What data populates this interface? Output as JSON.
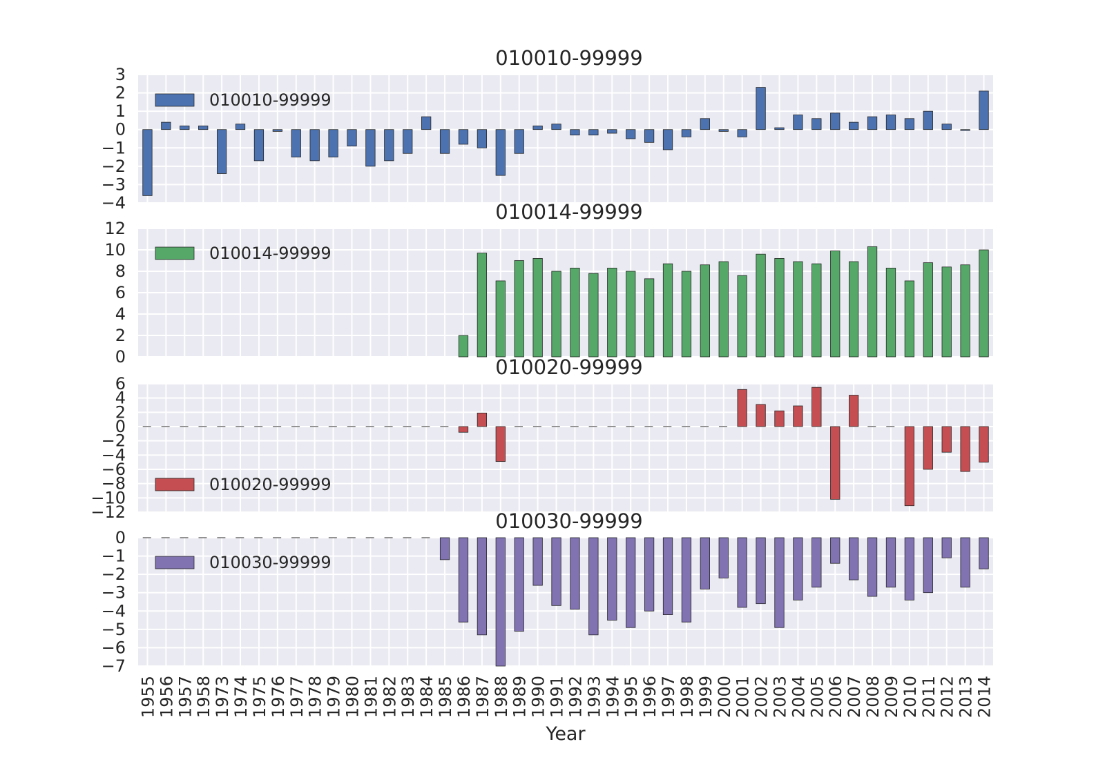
{
  "chart_data": {
    "type": "bar",
    "xlabel": "Year",
    "categories": [
      "1955",
      "1956",
      "1957",
      "1958",
      "1973",
      "1974",
      "1975",
      "1976",
      "1977",
      "1978",
      "1979",
      "1980",
      "1981",
      "1982",
      "1983",
      "1984",
      "1985",
      "1986",
      "1987",
      "1988",
      "1989",
      "1990",
      "1991",
      "1992",
      "1993",
      "1994",
      "1995",
      "1996",
      "1997",
      "1998",
      "1999",
      "2000",
      "2001",
      "2002",
      "2003",
      "2004",
      "2005",
      "2006",
      "2007",
      "2008",
      "2009",
      "2010",
      "2011",
      "2012",
      "2013",
      "2014"
    ],
    "grid": true,
    "legend_position": "upper-left (third panel: lower-left)",
    "panels": [
      {
        "title": "010010-99999",
        "legend": "010010-99999",
        "color": "#4C72B0",
        "ylim": [
          -4,
          3
        ],
        "yticks": [
          -4,
          -3,
          -2,
          -1,
          0,
          1,
          2,
          3
        ],
        "values": [
          -3.6,
          0.4,
          0.2,
          0.2,
          -2.4,
          0.3,
          -1.7,
          -0.1,
          -1.5,
          -1.7,
          -1.5,
          -0.9,
          -2.0,
          -1.7,
          -1.3,
          0.7,
          -1.3,
          -0.8,
          -1.0,
          -2.5,
          -1.3,
          0.2,
          0.3,
          -0.3,
          -0.3,
          -0.2,
          -0.5,
          -0.7,
          -1.1,
          -0.4,
          0.6,
          -0.1,
          -0.4,
          2.3,
          0.1,
          0.8,
          0.6,
          0.9,
          0.4,
          0.7,
          0.8,
          0.6,
          1.0,
          0.3,
          -0.05,
          2.1
        ]
      },
      {
        "title": "010014-99999",
        "legend": "010014-99999",
        "color": "#55A868",
        "ylim": [
          0,
          12
        ],
        "yticks": [
          0,
          2,
          4,
          6,
          8,
          10,
          12
        ],
        "values": [
          null,
          null,
          null,
          null,
          null,
          null,
          null,
          null,
          null,
          null,
          null,
          null,
          null,
          null,
          null,
          null,
          null,
          2.0,
          9.7,
          7.1,
          9.0,
          9.2,
          8.0,
          8.3,
          7.8,
          8.3,
          8.0,
          7.3,
          8.7,
          8.0,
          8.6,
          8.9,
          7.6,
          9.6,
          9.2,
          8.9,
          8.7,
          9.9,
          8.9,
          10.3,
          8.3,
          7.1,
          8.8,
          8.4,
          8.6,
          10.0
        ]
      },
      {
        "title": "010020-99999",
        "legend": "010020-99999",
        "color": "#C44E52",
        "ylim": [
          -12,
          6
        ],
        "yticks": [
          -12,
          -10,
          -8,
          -6,
          -4,
          -2,
          0,
          2,
          4,
          6
        ],
        "values": [
          0,
          0,
          0,
          0,
          0,
          0,
          0,
          0,
          0,
          0,
          0,
          0,
          0,
          0,
          0,
          0,
          0,
          -0.8,
          1.9,
          -4.9,
          0,
          0,
          0,
          0,
          0,
          0,
          0,
          0,
          0,
          0,
          0,
          0,
          5.2,
          3.1,
          2.2,
          2.9,
          5.5,
          -10.2,
          4.4,
          0,
          0,
          -11.1,
          -6.0,
          -3.6,
          -6.3,
          -5.0
        ]
      },
      {
        "title": "010030-99999",
        "legend": "010030-99999",
        "color": "#8172B2",
        "ylim": [
          -7,
          0
        ],
        "yticks": [
          -7,
          -6,
          -5,
          -4,
          -3,
          -2,
          -1,
          0
        ],
        "values": [
          0,
          0,
          0,
          0,
          0,
          0,
          0,
          0,
          0,
          0,
          0,
          0,
          0,
          0,
          0,
          0,
          -1.2,
          -4.6,
          -5.3,
          -7.0,
          -5.1,
          -2.6,
          -3.7,
          -3.9,
          -5.3,
          -4.5,
          -4.9,
          -4.0,
          -4.2,
          -4.6,
          -2.8,
          -2.2,
          -3.8,
          -3.6,
          -4.9,
          -3.4,
          -2.7,
          -1.4,
          -2.3,
          -3.2,
          -2.7,
          -3.4,
          -3.0,
          -1.1,
          -2.7,
          -1.7
        ]
      }
    ]
  }
}
